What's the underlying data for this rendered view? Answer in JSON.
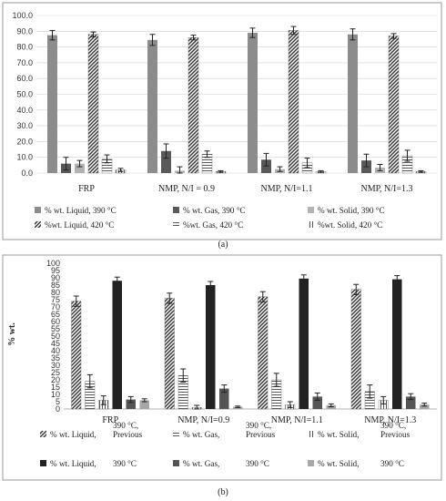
{
  "captions": {
    "a": "(a)",
    "b": "(b)"
  },
  "chart_data": [
    {
      "type": "bar",
      "id": "a",
      "categories": [
        "FRP",
        "NMP, N/I = 0.9",
        "NMP, N/I=1.1",
        "NMP, N/I=1.3"
      ],
      "ylim": [
        0,
        100
      ],
      "yticks": [
        "0.0",
        "10.0",
        "20.0",
        "30.0",
        "40.0",
        "50.0",
        "60.0",
        "70.0",
        "80.0",
        "90.0",
        "100.0"
      ],
      "ylabel": "",
      "grid": true,
      "legend_position": "bottom",
      "series": [
        {
          "name": "% wt. Liquid, 390 °C",
          "pattern": "solid",
          "color": "#8c8c8c",
          "values": [
            87.5,
            84.5,
            89.0,
            88.0
          ],
          "errors": [
            3.0,
            3.5,
            3.0,
            3.5
          ]
        },
        {
          "name": "% wt. Gas, 390 °C",
          "pattern": "solid",
          "color": "#595959",
          "values": [
            6.0,
            14.0,
            8.5,
            8.0
          ],
          "errors": [
            4.0,
            4.5,
            4.0,
            4.0
          ]
        },
        {
          "name": "% wt. Solid, 390 °C",
          "pattern": "solid",
          "color": "#b3b3b3",
          "values": [
            6.0,
            1.5,
            2.5,
            3.5
          ],
          "errors": [
            2.0,
            2.5,
            1.5,
            2.0
          ]
        },
        {
          "name": "%wt. Liquid, 420 °C",
          "pattern": "diag",
          "color": "#666666",
          "values": [
            88.0,
            86.0,
            90.5,
            87.0
          ],
          "errors": [
            1.5,
            1.5,
            2.5,
            1.5
          ]
        },
        {
          "name": "%wt. Gas, 420 °C",
          "pattern": "hline",
          "color": "#555555",
          "values": [
            9.0,
            12.0,
            6.5,
            11.0
          ],
          "errors": [
            2.5,
            2.0,
            3.0,
            3.5
          ]
        },
        {
          "name": "%wt. Solid, 420 °C",
          "pattern": "vline",
          "color": "#555555",
          "values": [
            2.0,
            1.0,
            1.0,
            1.0
          ],
          "errors": [
            1.0,
            0.5,
            0.5,
            0.5
          ]
        }
      ]
    },
    {
      "type": "bar",
      "id": "b",
      "categories": [
        "FRP",
        "NMP, N/I=0.9",
        "NMP, N/I=1.1",
        "NMP, N/I=1.3"
      ],
      "ylim": [
        0,
        100
      ],
      "yticks": [
        "0",
        "5",
        "10",
        "15",
        "20",
        "25",
        "30",
        "35",
        "40",
        "45",
        "50",
        "55",
        "60",
        "65",
        "70",
        "75",
        "80",
        "85",
        "90",
        "95",
        "100"
      ],
      "ylabel": "% wt.",
      "grid": false,
      "legend_position": "bottom",
      "series": [
        {
          "name": "% wt. Liquid, 390 °C, Previous",
          "label_lines": [
            "% wt. Liquid,",
            "390 °C,",
            "Previous"
          ],
          "pattern": "diag",
          "color": "#333333",
          "values": [
            74.0,
            76.0,
            77.0,
            82.0
          ],
          "errors": [
            3.5,
            3.5,
            3.5,
            3.5
          ]
        },
        {
          "name": "% wt. Gas, 390 °C, Previous",
          "label_lines": [
            "% wt. Gas,",
            "390 °C,",
            "Previous"
          ],
          "pattern": "hline",
          "color": "#333333",
          "values": [
            19.0,
            23.0,
            20.0,
            12.0
          ],
          "errors": [
            4.5,
            4.5,
            4.5,
            4.5
          ]
        },
        {
          "name": "% wt. Solid, 390 °C, Previous",
          "label_lines": [
            "% wt. Solid,",
            "390 °C,",
            "Previous"
          ],
          "pattern": "vline",
          "color": "#333333",
          "values": [
            6.0,
            1.0,
            3.0,
            6.0
          ],
          "errors": [
            3.0,
            1.5,
            2.0,
            2.5
          ]
        },
        {
          "name": "% wt. Liquid, 390 °C",
          "label_lines": [
            "% wt. Liquid,",
            "390 °C"
          ],
          "pattern": "solid",
          "color": "#222222",
          "values": [
            88.0,
            85.0,
            89.5,
            89.0
          ],
          "errors": [
            2.5,
            2.5,
            2.5,
            2.5
          ]
        },
        {
          "name": "% wt. Gas, 390 °C",
          "label_lines": [
            "% wt. Gas,",
            "390 °C"
          ],
          "pattern": "solid",
          "color": "#555555",
          "values": [
            6.5,
            14.0,
            8.5,
            8.5
          ],
          "errors": [
            2.0,
            2.5,
            2.5,
            2.0
          ]
        },
        {
          "name": "% wt. Solid, 390 °C",
          "label_lines": [
            "% wt. Solid,",
            "390 °C"
          ],
          "pattern": "solid",
          "color": "#a6a6a6",
          "values": [
            6.0,
            1.5,
            2.5,
            3.0
          ],
          "errors": [
            1.0,
            0.5,
            1.0,
            1.0
          ]
        }
      ]
    }
  ]
}
